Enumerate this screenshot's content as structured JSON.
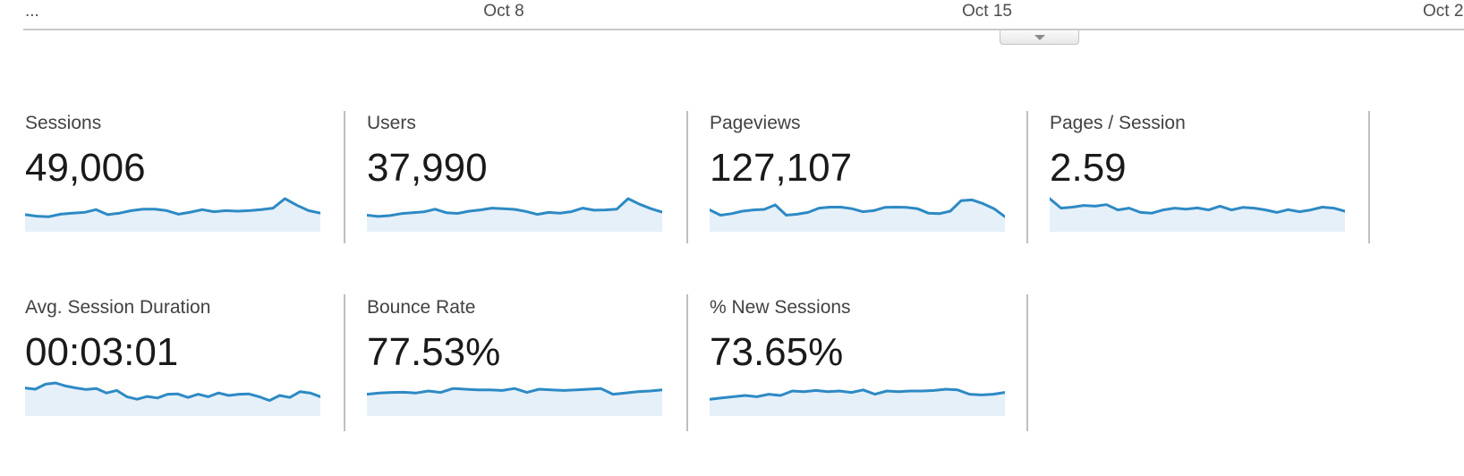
{
  "timeline": {
    "overflow_label": "...",
    "ticks": [
      "Oct 8",
      "Oct 15",
      "Oct 2"
    ],
    "collapse_button_icon": "chevron-down"
  },
  "colors": {
    "spark_line": "#2d8ac4",
    "spark_fill": "#e6f0f9",
    "divider": "#bfbfbf",
    "axis_line": "#c9c9c9",
    "tick_text": "#4c4c4c",
    "label_text": "#424242",
    "value_text": "#1a1a1a",
    "button_arrow": "#8a8a8a"
  },
  "cards": [
    {
      "label": "Sessions",
      "value": "49,006",
      "spark": [
        0.36,
        0.3,
        0.28,
        0.38,
        0.42,
        0.45,
        0.56,
        0.36,
        0.42,
        0.52,
        0.58,
        0.58,
        0.52,
        0.38,
        0.46,
        0.56,
        0.48,
        0.52,
        0.5,
        0.52,
        0.56,
        0.62,
        1.0,
        0.74,
        0.52,
        0.42
      ]
    },
    {
      "label": "Users",
      "value": "37,990",
      "spark": [
        0.34,
        0.29,
        0.32,
        0.4,
        0.44,
        0.47,
        0.58,
        0.44,
        0.41,
        0.5,
        0.55,
        0.62,
        0.6,
        0.57,
        0.49,
        0.37,
        0.45,
        0.42,
        0.48,
        0.62,
        0.54,
        0.55,
        0.58,
        1.0,
        0.78,
        0.6,
        0.46
      ]
    },
    {
      "label": "Pageviews",
      "value": "127,107",
      "spark": [
        0.55,
        0.34,
        0.4,
        0.5,
        0.55,
        0.57,
        0.75,
        0.34,
        0.38,
        0.45,
        0.62,
        0.66,
        0.66,
        0.6,
        0.48,
        0.52,
        0.65,
        0.66,
        0.65,
        0.6,
        0.42,
        0.4,
        0.5,
        0.92,
        0.95,
        0.8,
        0.6,
        0.28
      ]
    },
    {
      "label": "Pages / Session",
      "value": "2.59",
      "spark": [
        1.0,
        0.62,
        0.66,
        0.73,
        0.7,
        0.76,
        0.55,
        0.62,
        0.45,
        0.42,
        0.55,
        0.62,
        0.58,
        0.63,
        0.55,
        0.7,
        0.55,
        0.65,
        0.62,
        0.55,
        0.45,
        0.56,
        0.48,
        0.55,
        0.66,
        0.62,
        0.5
      ]
    },
    {
      "label": "Avg. Session Duration",
      "value": "00:03:01",
      "spark": [
        0.8,
        0.75,
        0.95,
        1.0,
        0.88,
        0.8,
        0.74,
        0.78,
        0.6,
        0.7,
        0.45,
        0.35,
        0.46,
        0.4,
        0.55,
        0.56,
        0.42,
        0.55,
        0.45,
        0.6,
        0.5,
        0.55,
        0.56,
        0.45,
        0.3,
        0.5,
        0.42,
        0.65,
        0.6,
        0.45
      ]
    },
    {
      "label": "Bounce Rate",
      "value": "77.53%",
      "spark": [
        0.55,
        0.6,
        0.62,
        0.63,
        0.6,
        0.68,
        0.62,
        0.78,
        0.75,
        0.72,
        0.72,
        0.7,
        0.78,
        0.62,
        0.75,
        0.72,
        0.7,
        0.72,
        0.75,
        0.78,
        0.55,
        0.6,
        0.65,
        0.68,
        0.72
      ]
    },
    {
      "label": "% New Sessions",
      "value": "73.65%",
      "spark": [
        0.35,
        0.4,
        0.45,
        0.5,
        0.45,
        0.55,
        0.5,
        0.68,
        0.65,
        0.7,
        0.65,
        0.68,
        0.62,
        0.72,
        0.55,
        0.68,
        0.65,
        0.68,
        0.68,
        0.7,
        0.75,
        0.72,
        0.55,
        0.52,
        0.55,
        0.62
      ]
    }
  ]
}
